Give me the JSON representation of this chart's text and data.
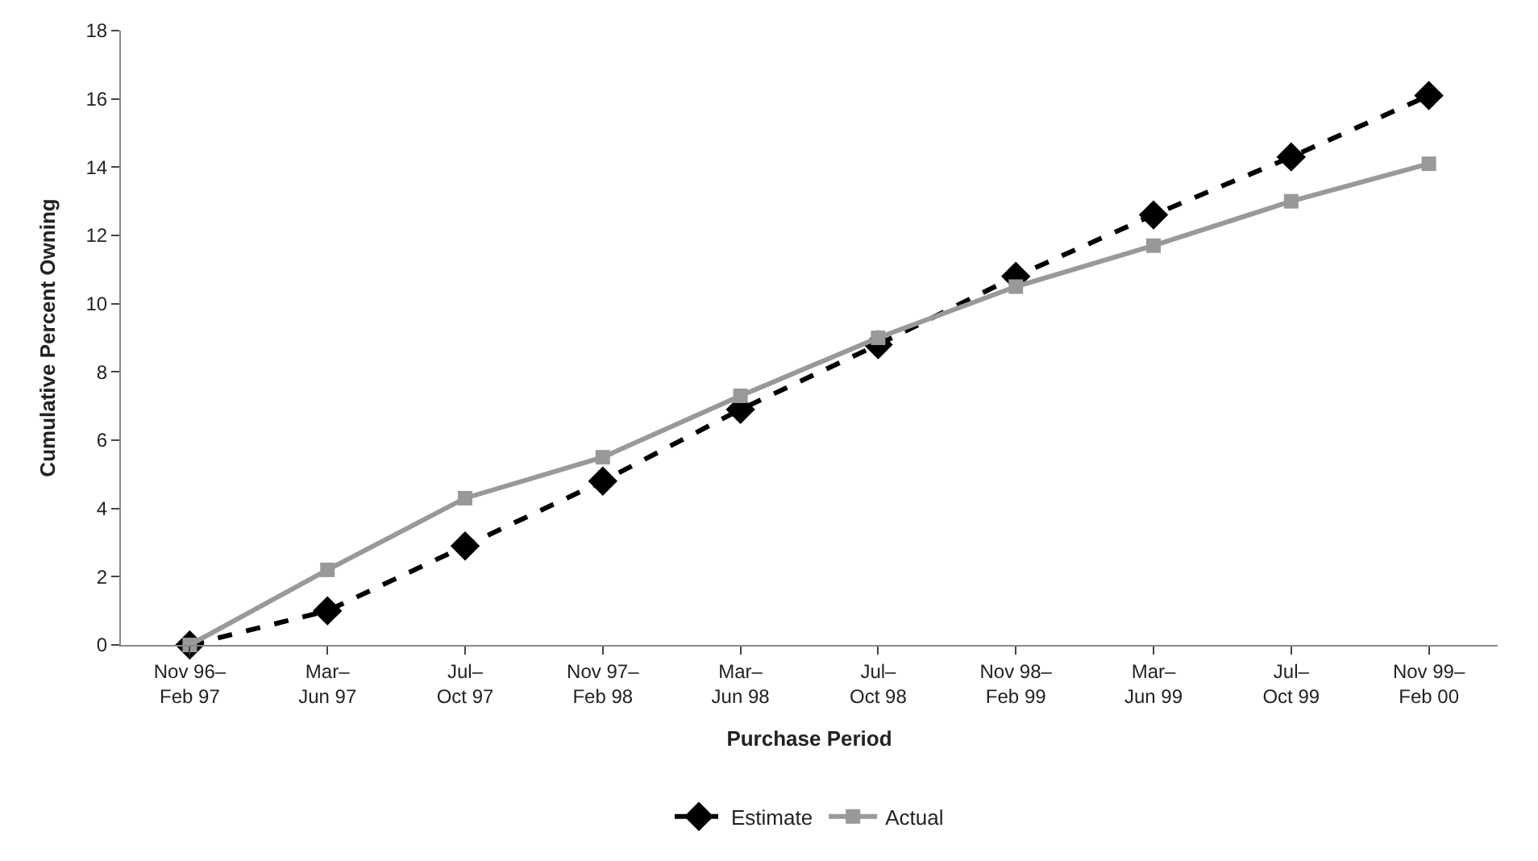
{
  "chart_data": {
    "type": "line",
    "xlabel": "Purchase Period",
    "ylabel": "Cumulative Percent Owning",
    "categories": [
      "Nov 96–\nFeb 97",
      "Mar–\nJun 97",
      "Jul–\nOct 97",
      "Nov 97–\nFeb 98",
      "Mar–\nJun 98",
      "Jul–\nOct 98",
      "Nov 98–\nFeb 99",
      "Mar–\nJun 99",
      "Jul–\nOct 99",
      "Nov 99–\nFeb 00"
    ],
    "series": [
      {
        "name": "Estimate",
        "color": "#000000",
        "marker": "diamond",
        "line_style": "dashed",
        "values": [
          0,
          1.0,
          2.9,
          4.8,
          6.9,
          8.8,
          10.8,
          12.6,
          14.3,
          16.1
        ]
      },
      {
        "name": "Actual",
        "color": "#999999",
        "marker": "square",
        "line_style": "solid",
        "values": [
          0,
          2.2,
          4.3,
          5.5,
          7.3,
          9.0,
          10.5,
          11.7,
          13.0,
          14.1
        ]
      }
    ],
    "ylim": [
      0,
      18
    ],
    "yticks": [
      0,
      2,
      4,
      6,
      8,
      10,
      12,
      14,
      16,
      18
    ],
    "legend": "bottom"
  }
}
